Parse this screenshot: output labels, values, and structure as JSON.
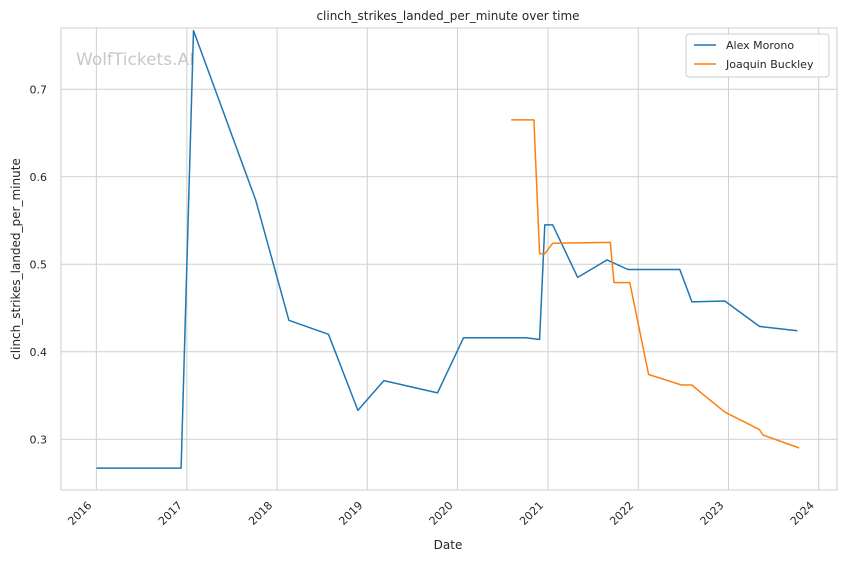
{
  "watermark": "WolfTickets.AI",
  "chart_data": {
    "type": "line",
    "title": "clinch_strikes_landed_per_minute over time",
    "xlabel": "Date",
    "ylabel": "clinch_strikes_landed_per_minute",
    "x_ticks": [
      "2016",
      "2017",
      "2018",
      "2019",
      "2020",
      "2021",
      "2022",
      "2023",
      "2024"
    ],
    "y_ticks": [
      "0.3",
      "0.4",
      "0.5",
      "0.6",
      "0.7"
    ],
    "xlim": [
      "2015-08-11",
      "2024-03-15"
    ],
    "ylim": [
      0.242,
      0.77
    ],
    "grid": true,
    "legend_position": "top-right",
    "series": [
      {
        "name": "Alex Morono",
        "color": "#1f77b4",
        "points": [
          {
            "x": "2016-01-01",
            "y": 0.267
          },
          {
            "x": "2016-12-09",
            "y": 0.267
          },
          {
            "x": "2017-01-28",
            "y": 0.767
          },
          {
            "x": "2017-10-07",
            "y": 0.573
          },
          {
            "x": "2018-02-18",
            "y": 0.436
          },
          {
            "x": "2018-07-28",
            "y": 0.42
          },
          {
            "x": "2018-11-24",
            "y": 0.333
          },
          {
            "x": "2019-03-09",
            "y": 0.367
          },
          {
            "x": "2019-10-12",
            "y": 0.353
          },
          {
            "x": "2020-01-25",
            "y": 0.416
          },
          {
            "x": "2020-10-03",
            "y": 0.416
          },
          {
            "x": "2020-11-28",
            "y": 0.414
          },
          {
            "x": "2020-12-19",
            "y": 0.545
          },
          {
            "x": "2021-01-20",
            "y": 0.545
          },
          {
            "x": "2021-05-01",
            "y": 0.485
          },
          {
            "x": "2021-08-28",
            "y": 0.505
          },
          {
            "x": "2021-11-20",
            "y": 0.494
          },
          {
            "x": "2022-06-18",
            "y": 0.494
          },
          {
            "x": "2022-08-06",
            "y": 0.457
          },
          {
            "x": "2022-12-17",
            "y": 0.458
          },
          {
            "x": "2023-05-06",
            "y": 0.429
          },
          {
            "x": "2023-10-07",
            "y": 0.424
          }
        ]
      },
      {
        "name": "Joaquin Buckley",
        "color": "#ff7f0e",
        "points": [
          {
            "x": "2020-08-05",
            "y": 0.665
          },
          {
            "x": "2020-11-05",
            "y": 0.665
          },
          {
            "x": "2020-11-28",
            "y": 0.512
          },
          {
            "x": "2020-12-19",
            "y": 0.512
          },
          {
            "x": "2021-01-20",
            "y": 0.524
          },
          {
            "x": "2021-09-10",
            "y": 0.525
          },
          {
            "x": "2021-09-25",
            "y": 0.479
          },
          {
            "x": "2021-11-28",
            "y": 0.479
          },
          {
            "x": "2022-02-12",
            "y": 0.374
          },
          {
            "x": "2022-06-25",
            "y": 0.362
          },
          {
            "x": "2022-08-06",
            "y": 0.362
          },
          {
            "x": "2022-09-17",
            "y": 0.352
          },
          {
            "x": "2022-12-17",
            "y": 0.331
          },
          {
            "x": "2023-05-06",
            "y": 0.311
          },
          {
            "x": "2023-05-20",
            "y": 0.305
          },
          {
            "x": "2023-10-14",
            "y": 0.29
          }
        ]
      }
    ]
  }
}
